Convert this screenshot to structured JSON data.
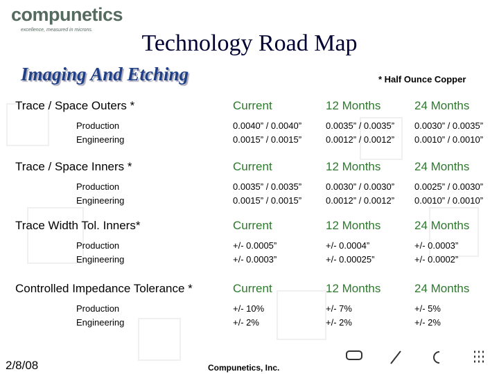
{
  "logo": {
    "name": "compunetics",
    "tagline": "excellence, measured in microns."
  },
  "title": "Technology Road Map",
  "subtitle": "Imaging And Etching",
  "note": "* Half Ounce Copper",
  "sections": [
    {
      "heading": "Trace / Space Outers *",
      "columns": [
        "Current",
        "12 Months",
        "24 Months"
      ],
      "rows": [
        {
          "label": "Production",
          "values": [
            "0.0040” /  0.0040”",
            "0.0035” /  0.0035”",
            "0.0030” / 0.0035”"
          ]
        },
        {
          "label": "Engineering",
          "values": [
            "0.0015” / 0.0015”",
            "0.0012” / 0.0012”",
            "0.0010” / 0.0010”"
          ]
        }
      ]
    },
    {
      "heading": "Trace / Space Inners  *",
      "columns": [
        "Current",
        "12 Months",
        "24 Months"
      ],
      "rows": [
        {
          "label": "Production",
          "values": [
            "0.0035” /  0.0035”",
            "0.0030” /  0.0030”",
            "0.0025” / 0.0030”"
          ]
        },
        {
          "label": "Engineering",
          "values": [
            "0.0015” / 0.0015”",
            "0.0012” / 0.0012”",
            "0.0010” / 0.0010”"
          ]
        }
      ]
    },
    {
      "heading": "Trace Width Tol. Inners*",
      "columns": [
        "Current",
        "12 Months",
        "24 Months"
      ],
      "rows": [
        {
          "label": "Production",
          "values": [
            "+/- 0.0005”",
            "+/- 0.0004”",
            "+/- 0.0003”"
          ]
        },
        {
          "label": "Engineering",
          "values": [
            "+/- 0.0003”",
            "+/- 0.00025”",
            "+/- 0.0002”"
          ]
        }
      ]
    },
    {
      "heading": "Controlled Impedance Tolerance *",
      "columns": [
        "Current",
        "12 Months",
        "24 Months"
      ],
      "rows": [
        {
          "label": "Production",
          "values": [
            "+/- 10%",
            "+/- 7%",
            "+/- 5%"
          ]
        },
        {
          "label": "Engineering",
          "values": [
            "+/- 2%",
            "+/- 2%",
            "+/- 2%"
          ]
        }
      ]
    }
  ],
  "footer": {
    "date": "2/8/08",
    "company": "Compunetics, Inc."
  }
}
